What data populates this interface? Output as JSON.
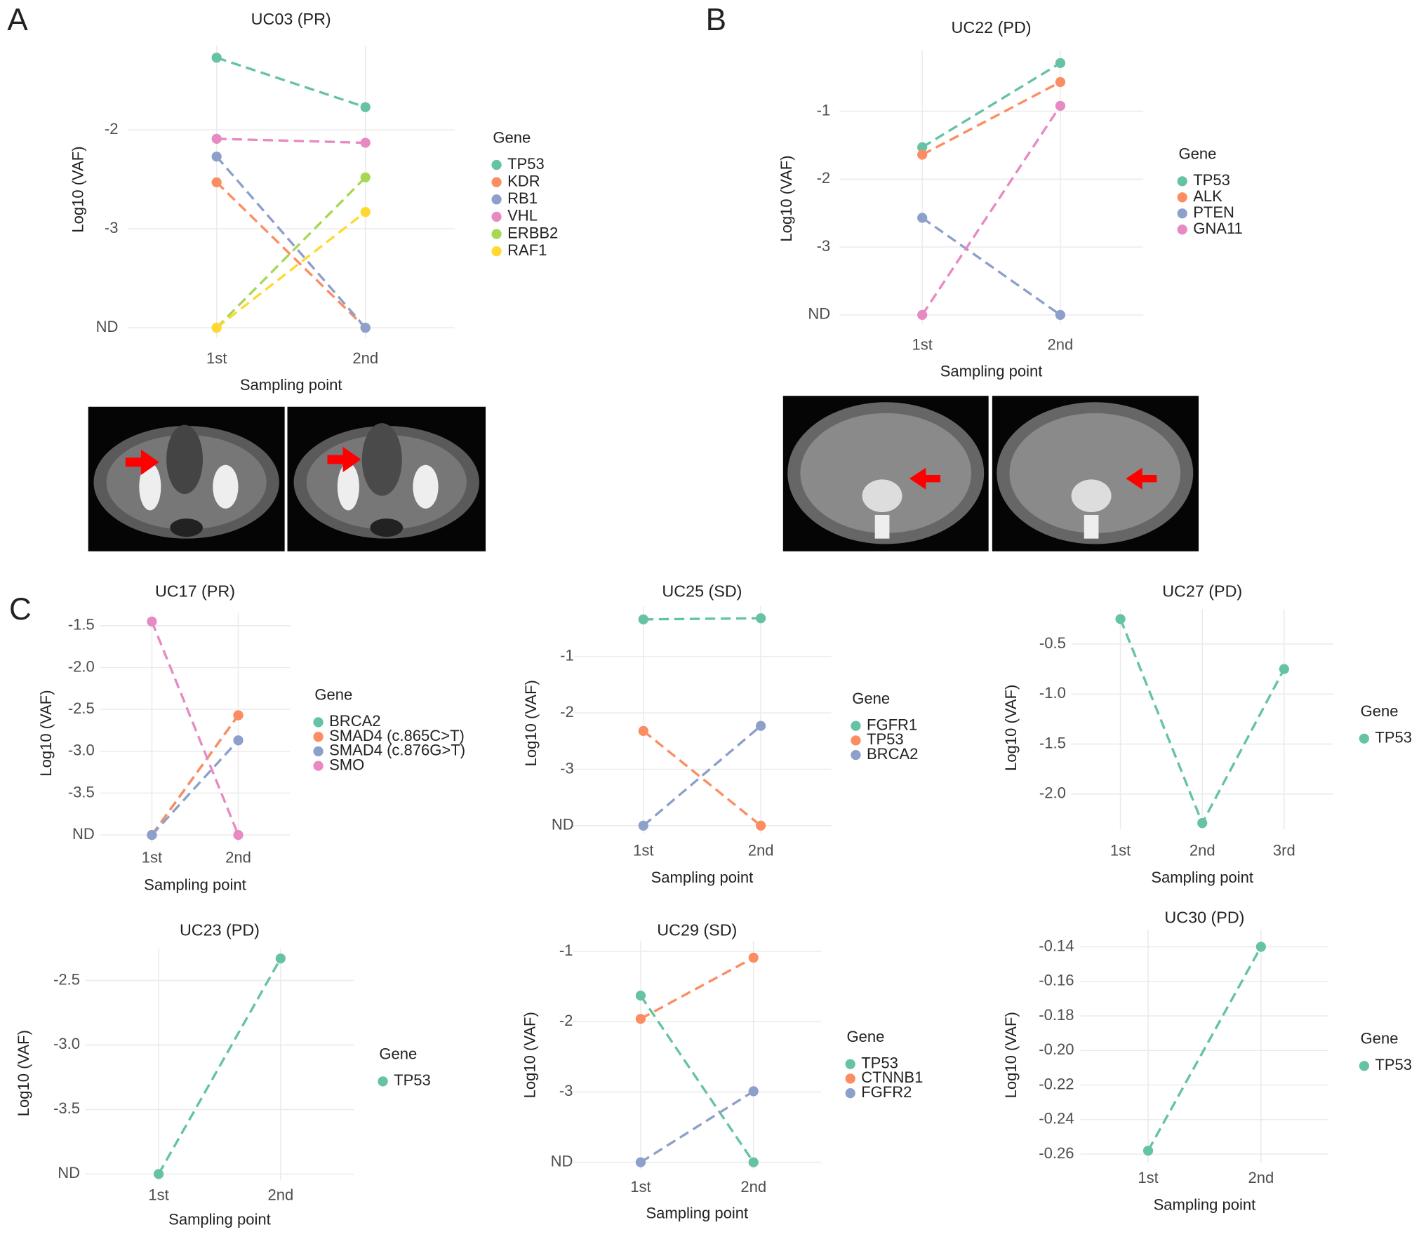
{
  "panel_labels": [
    "A",
    "B",
    "C"
  ],
  "chart_data": [
    {
      "type": "line",
      "title": "UC03 (PR)",
      "x_label": "Sampling point",
      "y_label": "Log10 (VAF)",
      "legend_title": "Gene",
      "categories": [
        "1st",
        "2nd"
      ],
      "ylim": [
        -4.1,
        -1.15
      ],
      "yticks": [
        {
          "value": -4,
          "label": "ND"
        },
        -3,
        -2
      ],
      "grid": true,
      "series": [
        {
          "name": "TP53",
          "color": "#66c2a5",
          "values": [
            -1.27,
            -1.77
          ]
        },
        {
          "name": "KDR",
          "color": "#fc8d62",
          "values": [
            -2.53,
            -4
          ]
        },
        {
          "name": "RB1",
          "color": "#8da0cb",
          "values": [
            -2.27,
            -4
          ]
        },
        {
          "name": "VHL",
          "color": "#e78ac3",
          "values": [
            -2.09,
            -2.13
          ]
        },
        {
          "name": "ERBB2",
          "color": "#a6d854",
          "values": [
            -4,
            -2.48
          ]
        },
        {
          "name": "RAF1",
          "color": "#ffd92f",
          "values": [
            -4,
            -2.83
          ]
        }
      ]
    },
    {
      "type": "line",
      "title": "UC22 (PD)",
      "x_label": "Sampling point",
      "y_label": "Log10 (VAF)",
      "legend_title": "Gene",
      "categories": [
        "1st",
        "2nd"
      ],
      "ylim": [
        -4.13,
        -0.1
      ],
      "yticks": [
        {
          "value": -4,
          "label": "ND"
        },
        -3,
        -2,
        -1
      ],
      "grid": true,
      "series": [
        {
          "name": "TP53",
          "color": "#66c2a5",
          "values": [
            -1.53,
            -0.29
          ]
        },
        {
          "name": "ALK",
          "color": "#fc8d62",
          "values": [
            -1.64,
            -0.57
          ]
        },
        {
          "name": "PTEN",
          "color": "#8da0cb",
          "values": [
            -2.57,
            -4
          ]
        },
        {
          "name": "GNA11",
          "color": "#e78ac3",
          "values": [
            -4,
            -0.92
          ]
        }
      ]
    },
    {
      "type": "line",
      "title": "UC17 (PR)",
      "x_label": "Sampling point",
      "y_label": "Log10 (VAF)",
      "legend_title": "Gene",
      "categories": [
        "1st",
        "2nd"
      ],
      "ylim": [
        -4.1,
        -1.35
      ],
      "yticks": [
        {
          "value": -4,
          "label": "ND"
        },
        -3.5,
        {
          "value": -3,
          "label": "-3.0"
        },
        -2.5,
        {
          "value": -2,
          "label": "-2.0"
        },
        -1.5
      ],
      "grid": true,
      "series": [
        {
          "name": "BRCA2",
          "color": "#66c2a5",
          "values": [
            -4,
            -2.57
          ]
        },
        {
          "name": "SMAD4 (c.865C>T)",
          "color": "#fc8d62",
          "values": [
            -4,
            -2.57
          ]
        },
        {
          "name": "SMAD4 (c.876G>T)",
          "color": "#8da0cb",
          "values": [
            -4,
            -2.87
          ]
        },
        {
          "name": "SMO",
          "color": "#e78ac3",
          "values": [
            -1.45,
            -4
          ]
        }
      ]
    },
    {
      "type": "line",
      "title": "UC25 (SD)",
      "x_label": "Sampling point",
      "y_label": "Log10 (VAF)",
      "legend_title": "Gene",
      "categories": [
        "1st",
        "2nd"
      ],
      "ylim": [
        -4.15,
        -0.1
      ],
      "yticks": [
        {
          "value": -4,
          "label": "ND"
        },
        -3,
        -2,
        -1
      ],
      "grid": true,
      "series": [
        {
          "name": "FGFR1",
          "color": "#66c2a5",
          "values": [
            -0.34,
            -0.32
          ]
        },
        {
          "name": "TP53",
          "color": "#fc8d62",
          "values": [
            -2.32,
            -4
          ]
        },
        {
          "name": "BRCA2",
          "color": "#8da0cb",
          "values": [
            -4,
            -2.23
          ]
        }
      ]
    },
    {
      "type": "line",
      "title": "UC27 (PD)",
      "x_label": "Sampling point",
      "y_label": "Log10 (VAF)",
      "legend_title": "Gene",
      "categories": [
        "1st",
        "2nd",
        "3rd"
      ],
      "ylim": [
        -2.35,
        -0.15
      ],
      "yticks": [
        {
          "value": -2,
          "label": "-2.0"
        },
        -1.5,
        {
          "value": -1,
          "label": "-1.0"
        },
        -0.5
      ],
      "grid": true,
      "series": [
        {
          "name": "TP53",
          "color": "#66c2a5",
          "values": [
            -0.25,
            -2.29,
            -0.75
          ]
        }
      ]
    },
    {
      "type": "line",
      "title": "UC23 (PD)",
      "x_label": "Sampling point",
      "y_label": "Log10 (VAF)",
      "legend_title": "Gene",
      "categories": [
        "1st",
        "2nd"
      ],
      "ylim": [
        -4.05,
        -2.25
      ],
      "yticks": [
        {
          "value": -4,
          "label": "ND"
        },
        -3.5,
        {
          "value": -3,
          "label": "-3.0"
        },
        -2.5
      ],
      "grid": true,
      "series": [
        {
          "name": "TP53",
          "color": "#66c2a5",
          "values": [
            -4,
            -2.33
          ]
        }
      ]
    },
    {
      "type": "line",
      "title": "UC29 (SD)",
      "x_label": "Sampling point",
      "y_label": "Log10 (VAF)",
      "legend_title": "Gene",
      "categories": [
        "1st",
        "2nd"
      ],
      "ylim": [
        -4.1,
        -0.85
      ],
      "yticks": [
        {
          "value": -4,
          "label": "ND"
        },
        -3,
        -2,
        -1
      ],
      "grid": true,
      "series": [
        {
          "name": "TP53",
          "color": "#66c2a5",
          "values": [
            -1.63,
            -4
          ]
        },
        {
          "name": "CTNNB1",
          "color": "#fc8d62",
          "values": [
            -1.96,
            -1.09
          ]
        },
        {
          "name": "FGFR2",
          "color": "#8da0cb",
          "values": [
            -4,
            -2.99
          ]
        }
      ]
    },
    {
      "type": "line",
      "title": "UC30 (PD)",
      "x_label": "Sampling point",
      "y_label": "Log10 (VAF)",
      "legend_title": "Gene",
      "categories": [
        "1st",
        "2nd"
      ],
      "ylim": [
        -0.265,
        -0.13
      ],
      "yticks": [
        -0.26,
        -0.24,
        -0.22,
        {
          "value": -0.2,
          "label": "-0.20"
        },
        -0.18,
        -0.16,
        -0.14
      ],
      "grid": true,
      "series": [
        {
          "name": "TP53",
          "color": "#66c2a5",
          "values": [
            -0.258,
            -0.14
          ]
        }
      ]
    }
  ]
}
